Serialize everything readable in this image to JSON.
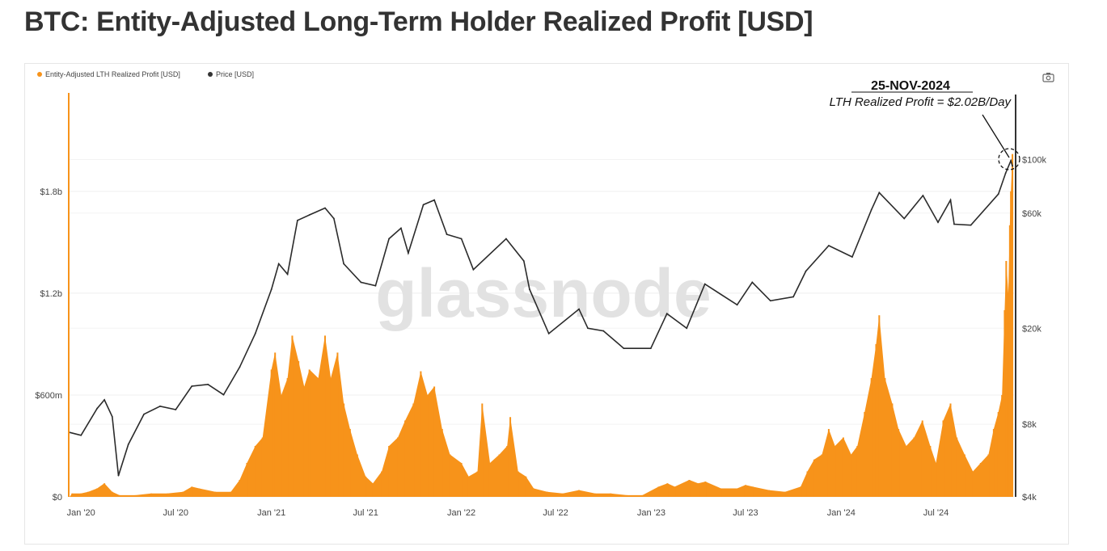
{
  "title": "BTC: Entity-Adjusted Long-Term Holder Realized Profit [USD]",
  "watermark": "glassnode",
  "icons": {
    "camera": "camera-icon"
  },
  "colors": {
    "profit": "#f7931a",
    "price": "#2b2b2b",
    "grid": "#eeeeee"
  },
  "chart_data": {
    "type": "bar+line",
    "title": "BTC: Entity-Adjusted Long-Term Holder Realized Profit [USD]",
    "legend_placement": "top-left",
    "grid": true,
    "x_ticks": [
      "Jan '20",
      "Jul '20",
      "Jan '21",
      "Jul '21",
      "Jan '22",
      "Jul '22",
      "Jan '23",
      "Jul '23",
      "Jan '24",
      "Jul '24"
    ],
    "x_tick_dates": [
      "2020-01-01",
      "2020-07-01",
      "2021-01-01",
      "2021-07-01",
      "2022-01-01",
      "2022-07-01",
      "2023-01-01",
      "2023-07-01",
      "2024-01-01",
      "2024-07-01"
    ],
    "xlim": [
      "2019-12-10",
      "2024-11-28"
    ],
    "y_left": {
      "ticks": [
        "$0",
        "$600m",
        "$1.2b",
        "$1.8b"
      ],
      "tick_values": [
        0,
        0.6,
        1.2,
        1.8
      ],
      "unit": "USD billions",
      "ylim": [
        0,
        2.38
      ]
    },
    "y_right": {
      "ticks": [
        "$4k",
        "$8k",
        "$20k",
        "$60k",
        "$100k"
      ],
      "tick_values": [
        4000,
        8000,
        20000,
        60000,
        100000
      ],
      "scale": "log",
      "ylim": [
        4000,
        189000
      ]
    },
    "annotation": {
      "date": "25-NOV-2024",
      "text": "LTH Realized Profit = $2.02B/Day"
    },
    "series": [
      {
        "name": "Entity-Adjusted LTH Realized Profit [USD]",
        "type": "bar",
        "axis": "left",
        "color": "#f7931a",
        "points": [
          [
            "2019-12-15",
            0.02
          ],
          [
            "2020-01-01",
            0.02
          ],
          [
            "2020-01-15",
            0.03
          ],
          [
            "2020-02-01",
            0.05
          ],
          [
            "2020-02-15",
            0.08
          ],
          [
            "2020-03-01",
            0.03
          ],
          [
            "2020-03-15",
            0.01
          ],
          [
            "2020-04-15",
            0.01
          ],
          [
            "2020-05-15",
            0.02
          ],
          [
            "2020-06-15",
            0.02
          ],
          [
            "2020-07-15",
            0.03
          ],
          [
            "2020-08-01",
            0.06
          ],
          [
            "2020-08-15",
            0.05
          ],
          [
            "2020-09-15",
            0.03
          ],
          [
            "2020-10-15",
            0.03
          ],
          [
            "2020-11-01",
            0.1
          ],
          [
            "2020-11-15",
            0.2
          ],
          [
            "2020-12-01",
            0.3
          ],
          [
            "2020-12-15",
            0.35
          ],
          [
            "2021-01-01",
            0.75
          ],
          [
            "2021-01-08",
            0.85
          ],
          [
            "2021-01-20",
            0.6
          ],
          [
            "2021-02-01",
            0.7
          ],
          [
            "2021-02-10",
            0.95
          ],
          [
            "2021-02-22",
            0.8
          ],
          [
            "2021-03-05",
            0.65
          ],
          [
            "2021-03-15",
            0.75
          ],
          [
            "2021-04-01",
            0.7
          ],
          [
            "2021-04-14",
            0.95
          ],
          [
            "2021-04-25",
            0.7
          ],
          [
            "2021-05-08",
            0.85
          ],
          [
            "2021-05-20",
            0.55
          ],
          [
            "2021-06-01",
            0.4
          ],
          [
            "2021-06-15",
            0.25
          ],
          [
            "2021-07-01",
            0.12
          ],
          [
            "2021-07-15",
            0.08
          ],
          [
            "2021-08-01",
            0.15
          ],
          [
            "2021-08-15",
            0.3
          ],
          [
            "2021-09-01",
            0.35
          ],
          [
            "2021-09-15",
            0.45
          ],
          [
            "2021-10-01",
            0.55
          ],
          [
            "2021-10-15",
            0.74
          ],
          [
            "2021-10-28",
            0.6
          ],
          [
            "2021-11-10",
            0.65
          ],
          [
            "2021-11-25",
            0.4
          ],
          [
            "2021-12-10",
            0.25
          ],
          [
            "2022-01-01",
            0.2
          ],
          [
            "2022-01-15",
            0.12
          ],
          [
            "2022-02-01",
            0.15
          ],
          [
            "2022-02-10",
            0.55
          ],
          [
            "2022-02-25",
            0.2
          ],
          [
            "2022-03-15",
            0.25
          ],
          [
            "2022-03-30",
            0.3
          ],
          [
            "2022-04-05",
            0.47
          ],
          [
            "2022-04-20",
            0.15
          ],
          [
            "2022-05-05",
            0.12
          ],
          [
            "2022-05-20",
            0.05
          ],
          [
            "2022-06-15",
            0.03
          ],
          [
            "2022-07-15",
            0.02
          ],
          [
            "2022-08-15",
            0.04
          ],
          [
            "2022-09-15",
            0.02
          ],
          [
            "2022-10-15",
            0.02
          ],
          [
            "2022-11-15",
            0.01
          ],
          [
            "2022-12-15",
            0.01
          ],
          [
            "2023-01-15",
            0.06
          ],
          [
            "2023-02-01",
            0.08
          ],
          [
            "2023-02-15",
            0.06
          ],
          [
            "2023-03-15",
            0.1
          ],
          [
            "2023-04-01",
            0.08
          ],
          [
            "2023-04-15",
            0.09
          ],
          [
            "2023-05-15",
            0.05
          ],
          [
            "2023-06-15",
            0.05
          ],
          [
            "2023-07-01",
            0.07
          ],
          [
            "2023-07-15",
            0.06
          ],
          [
            "2023-08-15",
            0.04
          ],
          [
            "2023-09-15",
            0.03
          ],
          [
            "2023-10-15",
            0.06
          ],
          [
            "2023-10-28",
            0.15
          ],
          [
            "2023-11-10",
            0.22
          ],
          [
            "2023-11-25",
            0.25
          ],
          [
            "2023-12-08",
            0.4
          ],
          [
            "2023-12-20",
            0.3
          ],
          [
            "2024-01-05",
            0.35
          ],
          [
            "2024-01-20",
            0.25
          ],
          [
            "2024-02-01",
            0.3
          ],
          [
            "2024-02-15",
            0.5
          ],
          [
            "2024-02-28",
            0.7
          ],
          [
            "2024-03-08",
            0.9
          ],
          [
            "2024-03-14",
            1.07
          ],
          [
            "2024-03-25",
            0.7
          ],
          [
            "2024-04-08",
            0.55
          ],
          [
            "2024-04-20",
            0.4
          ],
          [
            "2024-05-05",
            0.3
          ],
          [
            "2024-05-20",
            0.35
          ],
          [
            "2024-06-05",
            0.45
          ],
          [
            "2024-06-20",
            0.3
          ],
          [
            "2024-07-01",
            0.2
          ],
          [
            "2024-07-15",
            0.45
          ],
          [
            "2024-07-29",
            0.55
          ],
          [
            "2024-08-10",
            0.35
          ],
          [
            "2024-08-25",
            0.25
          ],
          [
            "2024-09-10",
            0.15
          ],
          [
            "2024-09-25",
            0.2
          ],
          [
            "2024-10-10",
            0.25
          ],
          [
            "2024-10-20",
            0.4
          ],
          [
            "2024-10-29",
            0.5
          ],
          [
            "2024-11-05",
            0.6
          ],
          [
            "2024-11-10",
            1.1
          ],
          [
            "2024-11-13",
            1.39
          ],
          [
            "2024-11-17",
            1.2
          ],
          [
            "2024-11-20",
            1.6
          ],
          [
            "2024-11-22",
            1.8
          ],
          [
            "2024-11-25",
            2.02
          ]
        ]
      },
      {
        "name": "Price [USD]",
        "type": "line",
        "axis": "right",
        "color": "#2b2b2b",
        "points": [
          [
            "2019-12-10",
            7400
          ],
          [
            "2020-01-01",
            7200
          ],
          [
            "2020-02-01",
            9300
          ],
          [
            "2020-02-15",
            10100
          ],
          [
            "2020-03-01",
            8600
          ],
          [
            "2020-03-13",
            4900
          ],
          [
            "2020-04-01",
            6600
          ],
          [
            "2020-05-01",
            8800
          ],
          [
            "2020-06-01",
            9500
          ],
          [
            "2020-07-01",
            9200
          ],
          [
            "2020-08-01",
            11500
          ],
          [
            "2020-09-01",
            11700
          ],
          [
            "2020-10-01",
            10600
          ],
          [
            "2020-11-01",
            13800
          ],
          [
            "2020-12-01",
            19000
          ],
          [
            "2021-01-01",
            29000
          ],
          [
            "2021-01-15",
            37000
          ],
          [
            "2021-02-01",
            33500
          ],
          [
            "2021-02-20",
            56000
          ],
          [
            "2021-03-15",
            59000
          ],
          [
            "2021-04-14",
            63000
          ],
          [
            "2021-05-01",
            57000
          ],
          [
            "2021-05-20",
            37000
          ],
          [
            "2021-06-22",
            31000
          ],
          [
            "2021-07-20",
            30000
          ],
          [
            "2021-08-15",
            47000
          ],
          [
            "2021-09-07",
            52000
          ],
          [
            "2021-09-21",
            41000
          ],
          [
            "2021-10-20",
            65000
          ],
          [
            "2021-11-10",
            68000
          ],
          [
            "2021-12-04",
            49000
          ],
          [
            "2022-01-01",
            47000
          ],
          [
            "2022-01-24",
            35000
          ],
          [
            "2022-03-28",
            47000
          ],
          [
            "2022-05-01",
            38000
          ],
          [
            "2022-05-12",
            29000
          ],
          [
            "2022-06-18",
            19000
          ],
          [
            "2022-08-15",
            24000
          ],
          [
            "2022-09-01",
            20000
          ],
          [
            "2022-10-01",
            19500
          ],
          [
            "2022-11-09",
            16500
          ],
          [
            "2022-12-31",
            16500
          ],
          [
            "2023-01-31",
            23000
          ],
          [
            "2023-03-10",
            20000
          ],
          [
            "2023-04-14",
            30500
          ],
          [
            "2023-06-15",
            25000
          ],
          [
            "2023-07-14",
            31000
          ],
          [
            "2023-08-18",
            26000
          ],
          [
            "2023-10-01",
            27000
          ],
          [
            "2023-10-25",
            34500
          ],
          [
            "2023-12-08",
            44000
          ],
          [
            "2024-01-22",
            39500
          ],
          [
            "2024-02-28",
            62000
          ],
          [
            "2024-03-14",
            73000
          ],
          [
            "2024-05-01",
            57000
          ],
          [
            "2024-06-06",
            71000
          ],
          [
            "2024-07-05",
            55000
          ],
          [
            "2024-07-29",
            68000
          ],
          [
            "2024-08-05",
            54000
          ],
          [
            "2024-09-06",
            53500
          ],
          [
            "2024-10-29",
            72000
          ],
          [
            "2024-11-12",
            88000
          ],
          [
            "2024-11-22",
            99000
          ],
          [
            "2024-11-25",
            94000
          ]
        ]
      }
    ]
  }
}
